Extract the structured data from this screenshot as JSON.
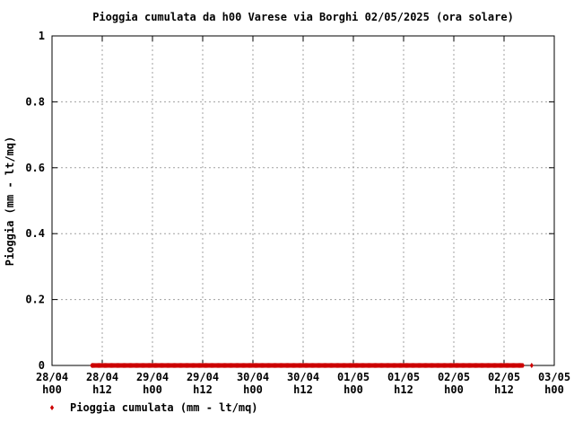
{
  "chart_data": {
    "type": "scatter",
    "title": "Pioggia cumulata da h00 Varese via Borghi 02/05/2025 (ora solare)",
    "xlabel": "",
    "ylabel": "Pioggia (mm - lt/mq)",
    "x_unit": "hours since 28/04 h00",
    "xlim": [
      0,
      120
    ],
    "ylim": [
      0,
      1
    ],
    "yticks": [
      "0",
      "0.2",
      "0.4",
      "0.6",
      "0.8",
      "1"
    ],
    "ytick_values": [
      0,
      0.2,
      0.4,
      0.6,
      0.8,
      1
    ],
    "xticks": [
      {
        "date": "28/04",
        "hour": "h00"
      },
      {
        "date": "28/04",
        "hour": "h12"
      },
      {
        "date": "29/04",
        "hour": "h00"
      },
      {
        "date": "29/04",
        "hour": "h12"
      },
      {
        "date": "30/04",
        "hour": "h00"
      },
      {
        "date": "30/04",
        "hour": "h12"
      },
      {
        "date": "01/05",
        "hour": "h00"
      },
      {
        "date": "01/05",
        "hour": "h12"
      },
      {
        "date": "02/05",
        "hour": "h00"
      },
      {
        "date": "02/05",
        "hour": "h12"
      },
      {
        "date": "03/05",
        "hour": "h00"
      }
    ],
    "xtick_values": [
      0,
      12,
      24,
      36,
      48,
      60,
      72,
      84,
      96,
      108,
      120
    ],
    "grid": true,
    "legend_position": "bottom-left",
    "series": [
      {
        "name": "Pioggia cumulata (mm - lt/mq)",
        "color": "#cc0000",
        "marker": "diamond",
        "x_start": 9.5,
        "x_end": 112.5,
        "x_step": 0.25,
        "y_constant": 0,
        "extra_points_x": [
          114.6
        ]
      }
    ]
  }
}
